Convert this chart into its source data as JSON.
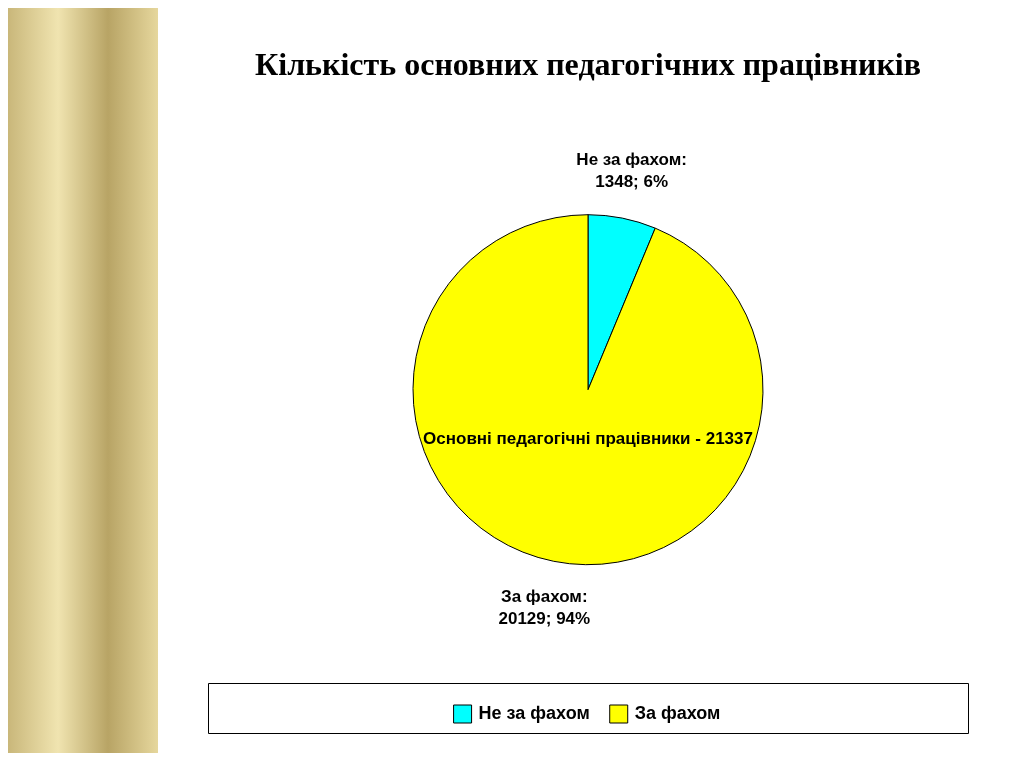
{
  "chart_data": {
    "type": "pie",
    "title": "Кількість основних педагогічних працівників",
    "categories": [
      "Не за фахом",
      "За фахом"
    ],
    "values": [
      1348,
      20129
    ],
    "colors": [
      "#00ffff",
      "#ffff00"
    ],
    "value_labels": [
      "Не за фахом:\n1348; 6%",
      "За фахом:\n20129; 94%"
    ],
    "annotations": [
      "Основні педагогічні працівники - 21337"
    ],
    "legend": "bottom"
  }
}
